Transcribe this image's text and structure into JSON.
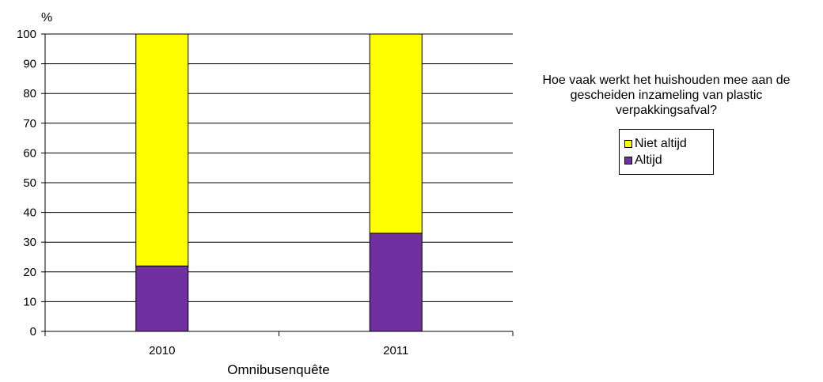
{
  "chart_data": {
    "type": "bar",
    "stacked": true,
    "ylabel": "%",
    "xlabel": "Omnibusenquête",
    "categories": [
      "2010",
      "2011"
    ],
    "ylim": [
      0,
      100
    ],
    "yticks": [
      0,
      10,
      20,
      30,
      40,
      50,
      60,
      70,
      80,
      90,
      100
    ],
    "grid": true,
    "legend_title": "Hoe vaak werkt het huishouden mee aan de gescheiden inzameling van plastic verpakkingsafval?",
    "legend_placement": "right",
    "series": [
      {
        "name": "Altijd",
        "values": [
          22,
          33
        ],
        "color": "#7030a0"
      },
      {
        "name": "Niet altijd",
        "values": [
          78,
          67
        ],
        "color": "#ffff00"
      }
    ],
    "legend_order": [
      "Niet altijd",
      "Altijd"
    ]
  }
}
